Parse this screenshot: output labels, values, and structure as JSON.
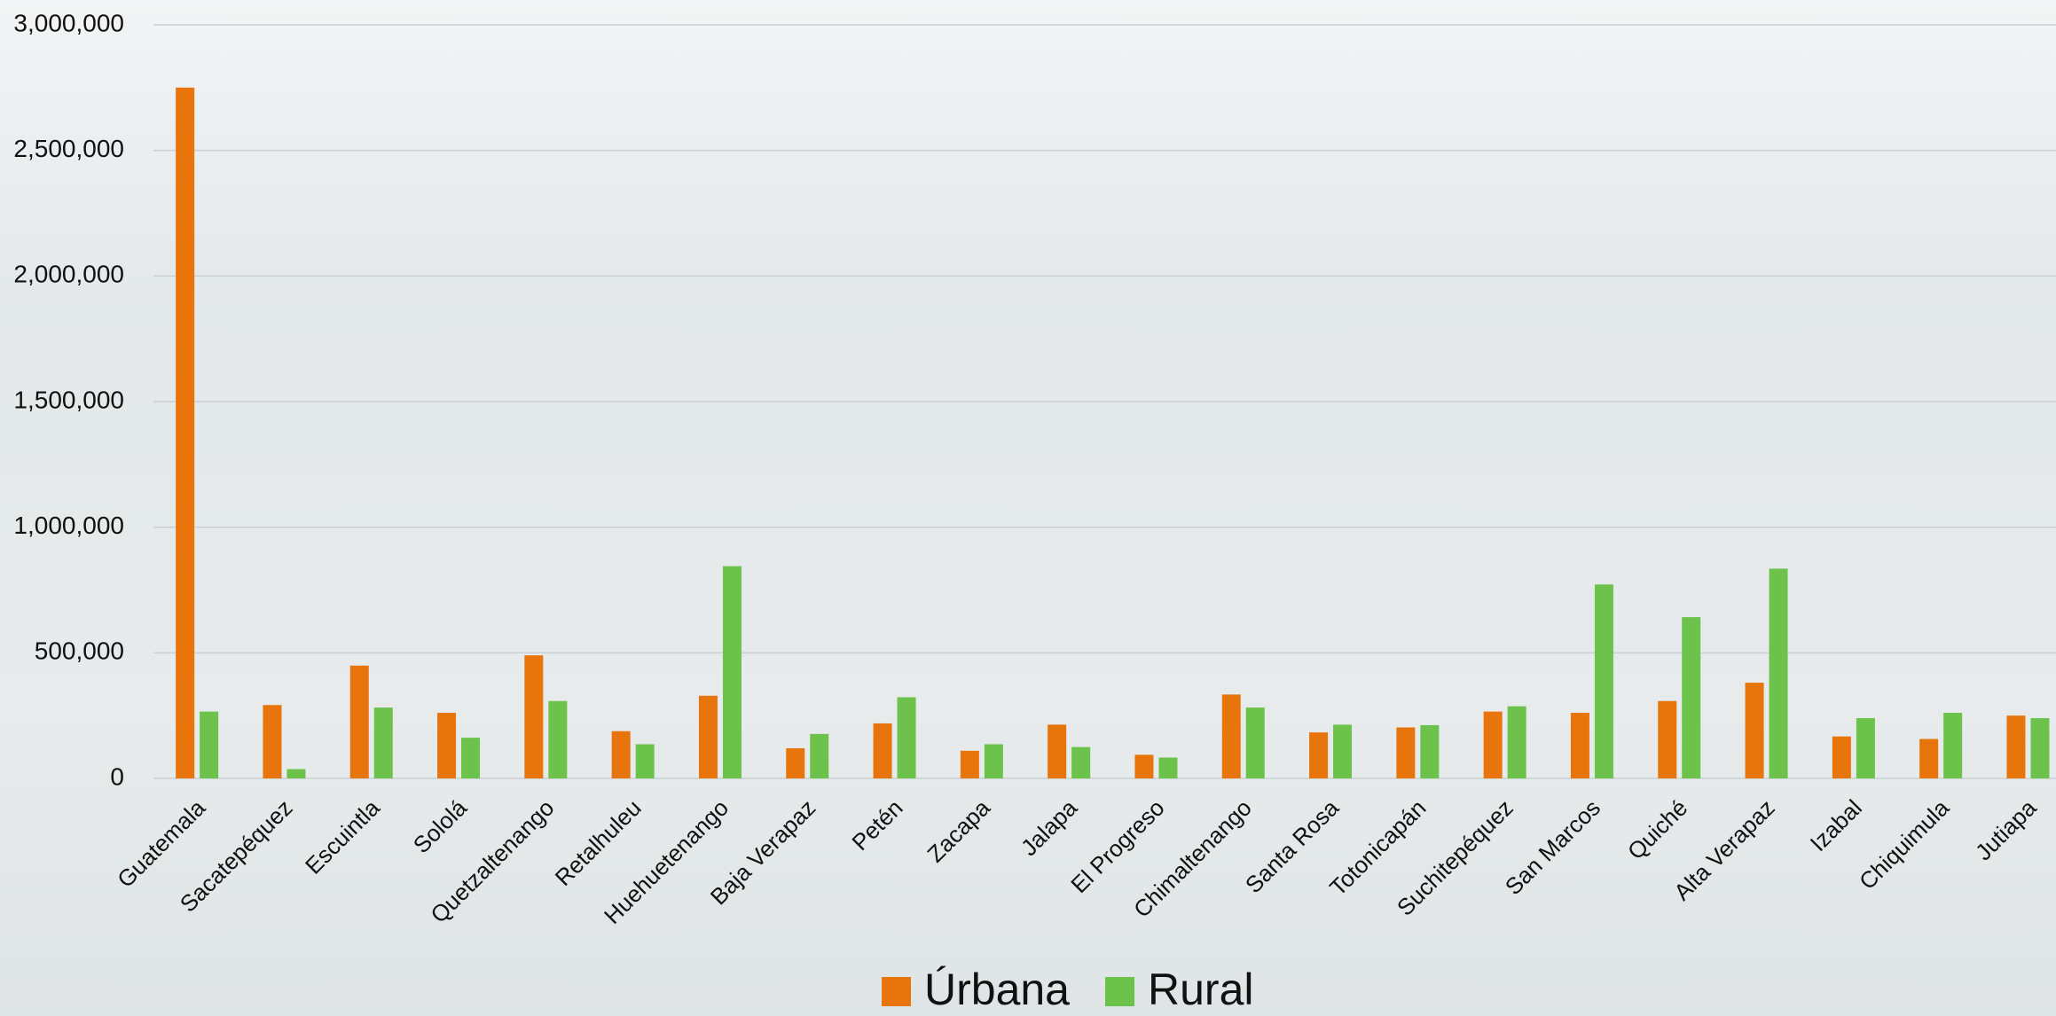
{
  "chart_data": {
    "type": "bar",
    "categories": [
      "Guatemala",
      "Sacatepéquez",
      "Escuintla",
      "Sololá",
      "Quetzaltenango",
      "Retalhuleu",
      "Huehuetenango",
      "Baja Verapaz",
      "Petén",
      "Zacapa",
      "Jalapa",
      "El Progreso",
      "Chimaltenango",
      "Santa Rosa",
      "Totonicapán",
      "Suchitepéquez",
      "San Marcos",
      "Quiché",
      "Alta Verapaz",
      "Izabal",
      "Chiquimula",
      "Jutiapa"
    ],
    "series": [
      {
        "name": "Úrbana",
        "color": "#e8740c",
        "values": [
          2750000,
          292000,
          449000,
          261000,
          490000,
          188000,
          329000,
          120000,
          219000,
          110000,
          214000,
          94000,
          334000,
          183000,
          203000,
          266000,
          261000,
          308000,
          381000,
          167000,
          157000,
          250000
        ]
      },
      {
        "name": "Rural",
        "color": "#6cc24a",
        "values": [
          266000,
          37000,
          282000,
          162000,
          308000,
          136000,
          845000,
          177000,
          323000,
          136000,
          125000,
          83000,
          282000,
          214000,
          212000,
          287000,
          772000,
          642000,
          835000,
          240000,
          261000,
          240000
        ]
      }
    ],
    "ylim": [
      0,
      3000000
    ],
    "yticks": [
      0,
      {
        "value": 500000,
        "label": "500,000"
      },
      {
        "value": 1000000,
        "label": "1,000,000"
      },
      {
        "value": 1500000,
        "label": "1,500,000"
      },
      {
        "value": 2000000,
        "label": "2,000,000"
      },
      {
        "value": 2500000,
        "label": "2,500,000"
      },
      {
        "value": 3000000,
        "label": "3,000,000"
      }
    ],
    "grid": true,
    "legend": "bottom"
  }
}
